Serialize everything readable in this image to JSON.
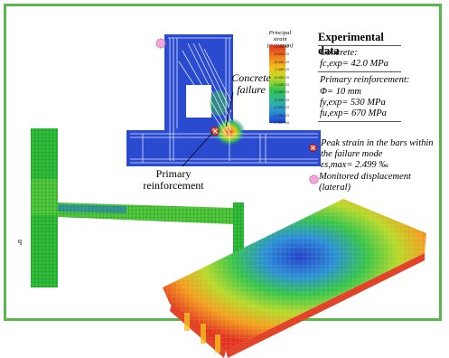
{
  "colors": {
    "frame": "#57b947",
    "bar_marker": "#e8492d",
    "disp_marker": "#f2a7d8",
    "scale_top": "#e23420",
    "scale_bottom": "#1e3fd0"
  },
  "legend": {
    "title_line1": "Principal strain",
    "title_line2": "(minimum)",
    "ticks": [
      "-1.00E-02",
      "-9.00E-03",
      "-8.00E-03",
      "-7.00E-03",
      "-6.00E-03",
      "-5.00E-03",
      "-4.00E-03",
      "-3.00E-03",
      "-2.00E-03",
      "-1.00E-03",
      "0.00E+00"
    ]
  },
  "experimental": {
    "title": "Experimental data",
    "concrete_label": "Concrete:",
    "fc": "fc,exp= 42.0 MPa",
    "reinf_label": "Primary reinforcement:",
    "phi": "Φ= 10 mm",
    "fy": "fy,exp= 530 MPa",
    "fu": "fu,exp= 670 MPa"
  },
  "callouts": {
    "concrete_failure_1": "Concrete",
    "concrete_failure_2": "failure",
    "primary_1": "Primary",
    "primary_2": "reinforcement"
  },
  "notes": {
    "peak_1": "Peak strain in the bars within",
    "peak_2": "the failure mode",
    "peak_3": "εs,max= 2.499 ‰",
    "monitored_1": "Monitored displacement",
    "monitored_2": "(lateral)"
  },
  "small_label": "q",
  "icons": {
    "bar_marker": "circle-x-icon",
    "disp_marker": "dotted-circle-icon"
  }
}
